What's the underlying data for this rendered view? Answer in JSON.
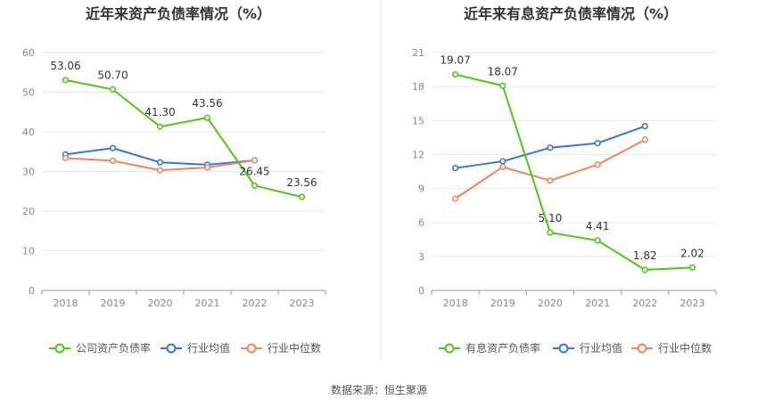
{
  "source_text": "数据来源：恒生聚源",
  "chart_data": [
    {
      "type": "line",
      "title": "近年来资产负债率情况（%）",
      "categories": [
        "2018",
        "2019",
        "2020",
        "2021",
        "2022",
        "2023"
      ],
      "y_ticks": [
        0,
        10,
        20,
        30,
        40,
        50,
        60
      ],
      "ylim": [
        0,
        60
      ],
      "grid": true,
      "legend_position": "bottom",
      "series": [
        {
          "name": "公司资产负债率",
          "color": "#52c41a",
          "values": [
            53.06,
            50.7,
            41.3,
            43.56,
            26.45,
            23.56
          ],
          "labels": [
            "53.06",
            "50.70",
            "41.30",
            "43.56",
            "26.45",
            "23.56"
          ]
        },
        {
          "name": "行业均值",
          "color": "#3b74d9",
          "values": [
            34.3,
            35.9,
            32.3,
            31.7,
            32.8,
            null
          ]
        },
        {
          "name": "行业中位数",
          "color": "#f0845e",
          "values": [
            33.4,
            32.7,
            30.3,
            31.0,
            32.8,
            null
          ]
        }
      ]
    },
    {
      "type": "line",
      "title": "近年来有息资产负债率情况（%）",
      "categories": [
        "2018",
        "2019",
        "2020",
        "2021",
        "2022",
        "2023"
      ],
      "y_ticks": [
        0,
        3,
        6,
        9,
        12,
        15,
        18,
        21
      ],
      "ylim": [
        0,
        21
      ],
      "grid": true,
      "legend_position": "bottom",
      "series": [
        {
          "name": "有息资产负债率",
          "color": "#52c41a",
          "values": [
            19.07,
            18.07,
            5.1,
            4.41,
            1.82,
            2.02
          ],
          "labels": [
            "19.07",
            "18.07",
            "5.10",
            "4.41",
            "1.82",
            "2.02"
          ]
        },
        {
          "name": "行业均值",
          "color": "#3b74d9",
          "values": [
            10.8,
            11.4,
            12.6,
            13.0,
            14.5,
            null
          ]
        },
        {
          "name": "行业中位数",
          "color": "#f0845e",
          "values": [
            8.1,
            10.9,
            9.7,
            11.1,
            13.3,
            null
          ]
        }
      ]
    }
  ]
}
